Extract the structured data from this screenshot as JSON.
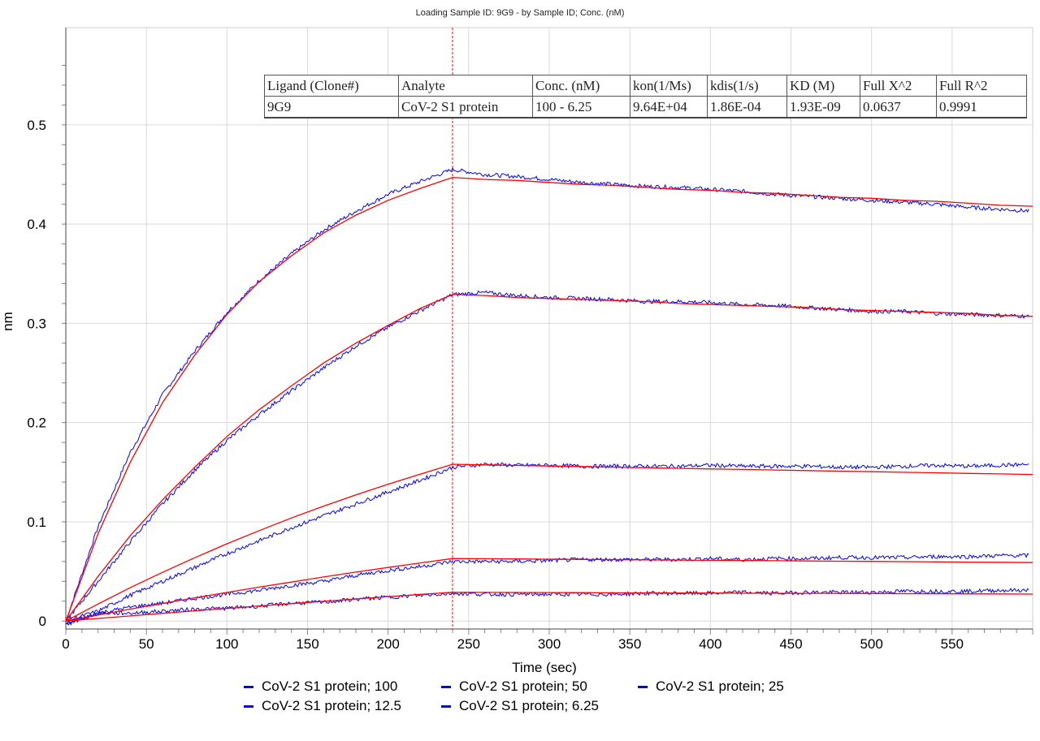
{
  "chart_data": {
    "type": "line",
    "title": "Loading Sample ID: 9G9 - by Sample ID; Conc. (nM)",
    "xlabel": "Time (sec)",
    "ylabel": "nm",
    "xlim": [
      0,
      600
    ],
    "ylim": [
      -0.008,
      0.598
    ],
    "x_ticks": [
      0,
      50,
      100,
      150,
      200,
      250,
      300,
      350,
      400,
      450,
      500,
      550
    ],
    "y_ticks": [
      0,
      0.1,
      0.2,
      0.3,
      0.4,
      0.5
    ],
    "grid": true,
    "legend_position": "bottom",
    "association_dissociation_boundary": 240,
    "colors": {
      "measured": "#0000ff",
      "fit": "#ff0000",
      "boundary": "#ff0000"
    },
    "x": [
      0,
      20,
      40,
      60,
      80,
      100,
      120,
      140,
      160,
      180,
      200,
      220,
      240,
      260,
      280,
      300,
      320,
      340,
      360,
      380,
      400,
      420,
      440,
      460,
      480,
      500,
      520,
      540,
      560,
      580,
      600
    ],
    "series": [
      {
        "name": "CoV-2 S1 protein; 100",
        "measured": [
          0,
          0.095,
          0.17,
          0.228,
          0.272,
          0.311,
          0.343,
          0.37,
          0.394,
          0.413,
          0.43,
          0.443,
          0.455,
          0.45,
          0.448,
          0.445,
          0.442,
          0.44,
          0.438,
          0.437,
          0.435,
          0.433,
          0.43,
          0.428,
          0.426,
          0.424,
          0.422,
          0.42,
          0.417,
          0.415,
          0.413
        ],
        "fit": [
          0,
          0.088,
          0.16,
          0.22,
          0.268,
          0.309,
          0.342,
          0.368,
          0.391,
          0.409,
          0.424,
          0.436,
          0.447,
          0.445,
          0.444,
          0.442,
          0.44,
          0.439,
          0.437,
          0.435,
          0.434,
          0.432,
          0.431,
          0.429,
          0.427,
          0.426,
          0.424,
          0.423,
          0.421,
          0.419,
          0.418
        ]
      },
      {
        "name": "CoV-2 S1 protein; 50",
        "measured": [
          0,
          0.04,
          0.08,
          0.118,
          0.152,
          0.182,
          0.208,
          0.232,
          0.255,
          0.277,
          0.296,
          0.313,
          0.329,
          0.331,
          0.328,
          0.326,
          0.325,
          0.324,
          0.322,
          0.322,
          0.321,
          0.319,
          0.318,
          0.316,
          0.314,
          0.312,
          0.312,
          0.31,
          0.309,
          0.308,
          0.307
        ],
        "fit": [
          0,
          0.045,
          0.086,
          0.122,
          0.155,
          0.186,
          0.213,
          0.237,
          0.26,
          0.28,
          0.298,
          0.315,
          0.329,
          0.328,
          0.326,
          0.325,
          0.324,
          0.323,
          0.322,
          0.32,
          0.319,
          0.318,
          0.317,
          0.316,
          0.314,
          0.313,
          0.312,
          0.311,
          0.31,
          0.308,
          0.307
        ]
      },
      {
        "name": "CoV-2 S1 protein; 25",
        "measured": [
          0,
          0.01,
          0.026,
          0.04,
          0.054,
          0.068,
          0.081,
          0.094,
          0.106,
          0.118,
          0.13,
          0.142,
          0.155,
          0.158,
          0.157,
          0.157,
          0.156,
          0.156,
          0.156,
          0.156,
          0.157,
          0.156,
          0.156,
          0.156,
          0.155,
          0.155,
          0.156,
          0.157,
          0.156,
          0.157,
          0.158
        ],
        "fit": [
          0,
          0.0172,
          0.0336,
          0.0491,
          0.0638,
          0.0779,
          0.0911,
          0.1039,
          0.1158,
          0.1271,
          0.1379,
          0.148,
          0.158,
          0.1574,
          0.1568,
          0.1562,
          0.1557,
          0.1551,
          0.1545,
          0.1539,
          0.1533,
          0.1528,
          0.1522,
          0.1516,
          0.1511,
          0.1505,
          0.1499,
          0.1494,
          0.1488,
          0.1483,
          0.1477
        ]
      },
      {
        "name": "CoV-2 S1 protein; 12.5",
        "measured": [
          -0.004,
          0.008,
          0.014,
          0.018,
          0.023,
          0.027,
          0.031,
          0.036,
          0.04,
          0.046,
          0.051,
          0.055,
          0.06,
          0.06,
          0.06,
          0.061,
          0.062,
          0.062,
          0.062,
          0.062,
          0.063,
          0.062,
          0.063,
          0.063,
          0.064,
          0.064,
          0.064,
          0.065,
          0.065,
          0.066,
          0.066
        ],
        "fit": [
          0,
          0.0061,
          0.012,
          0.0178,
          0.0234,
          0.0288,
          0.0342,
          0.0393,
          0.0444,
          0.0493,
          0.054,
          0.0586,
          0.063,
          0.0628,
          0.0626,
          0.0623,
          0.0621,
          0.0619,
          0.0617,
          0.0614,
          0.0612,
          0.061,
          0.0608,
          0.0605,
          0.0603,
          0.0601,
          0.0599,
          0.0596,
          0.0594,
          0.0592,
          0.0589
        ]
      },
      {
        "name": "CoV-2 S1 protein; 6.25",
        "measured": [
          -0.002,
          0.008,
          0.008,
          0.01,
          0.012,
          0.013,
          0.015,
          0.018,
          0.019,
          0.022,
          0.024,
          0.026,
          0.028,
          0.027,
          0.027,
          0.027,
          0.027,
          0.027,
          0.028,
          0.028,
          0.028,
          0.029,
          0.028,
          0.029,
          0.029,
          0.029,
          0.03,
          0.03,
          0.03,
          0.031,
          0.031
        ],
        "fit": [
          0,
          0.0026,
          0.0052,
          0.0078,
          0.0103,
          0.0128,
          0.0152,
          0.0176,
          0.0199,
          0.0223,
          0.0246,
          0.0268,
          0.029,
          0.0289,
          0.0288,
          0.0287,
          0.0286,
          0.0285,
          0.0284,
          0.0283,
          0.0282,
          0.0281,
          0.028,
          0.0279,
          0.0278,
          0.0277,
          0.0276,
          0.0275,
          0.0274,
          0.0273,
          0.0272
        ]
      }
    ]
  },
  "table": {
    "headers": [
      "Ligand (Clone#)",
      " Analyte",
      "Conc. (nM)",
      "kon(1/Ms)",
      "kdis(1/s)",
      "KD (M)",
      "Full X^2",
      "Full R^2"
    ],
    "row": [
      "9G9",
      "CoV-2 S1 protein",
      "100 - 6.25",
      "9.64E+04",
      "1.86E-04",
      "1.93E-09",
      "0.0637",
      "0.9991"
    ]
  }
}
